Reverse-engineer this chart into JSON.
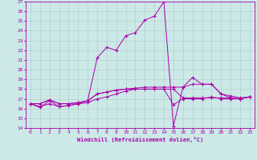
{
  "xlabel": "Windchill (Refroidissement éolien,°C)",
  "background_color": "#cce9e8",
  "grid_color": "#aacccc",
  "line_color": "#aa00aa",
  "marker": "+",
  "xlim": [
    -0.5,
    23.5
  ],
  "ylim": [
    14,
    27
  ],
  "xticks": [
    0,
    1,
    2,
    3,
    4,
    5,
    6,
    7,
    8,
    9,
    10,
    11,
    12,
    13,
    14,
    15,
    16,
    17,
    18,
    19,
    20,
    21,
    22,
    23
  ],
  "yticks": [
    14,
    15,
    16,
    17,
    18,
    19,
    20,
    21,
    22,
    23,
    24,
    25,
    26,
    27
  ],
  "series": [
    [
      16.5,
      16.1,
      16.8,
      16.2,
      16.3,
      16.5,
      16.8,
      21.2,
      22.3,
      22.0,
      23.5,
      23.8,
      25.1,
      25.5,
      27.0,
      14.2,
      18.2,
      19.2,
      18.5,
      18.5,
      17.5,
      17.1,
      17.0,
      17.2
    ],
    [
      16.5,
      16.5,
      16.9,
      16.5,
      16.5,
      16.6,
      16.8,
      17.5,
      17.7,
      17.9,
      18.0,
      18.1,
      18.2,
      18.2,
      18.2,
      18.2,
      18.2,
      18.5,
      18.5,
      18.5,
      17.5,
      17.3,
      17.1,
      17.2
    ],
    [
      16.5,
      16.5,
      16.9,
      16.5,
      16.5,
      16.6,
      16.8,
      17.5,
      17.7,
      17.9,
      18.0,
      18.0,
      18.0,
      18.0,
      18.0,
      16.4,
      17.0,
      17.0,
      17.0,
      17.2,
      17.0,
      17.0,
      17.0,
      17.2
    ],
    [
      16.5,
      16.2,
      16.5,
      16.2,
      16.3,
      16.5,
      16.6,
      17.0,
      17.2,
      17.5,
      17.8,
      18.0,
      18.0,
      18.0,
      18.0,
      18.0,
      17.1,
      17.1,
      17.1,
      17.1,
      17.1,
      17.1,
      17.0,
      17.2
    ]
  ]
}
